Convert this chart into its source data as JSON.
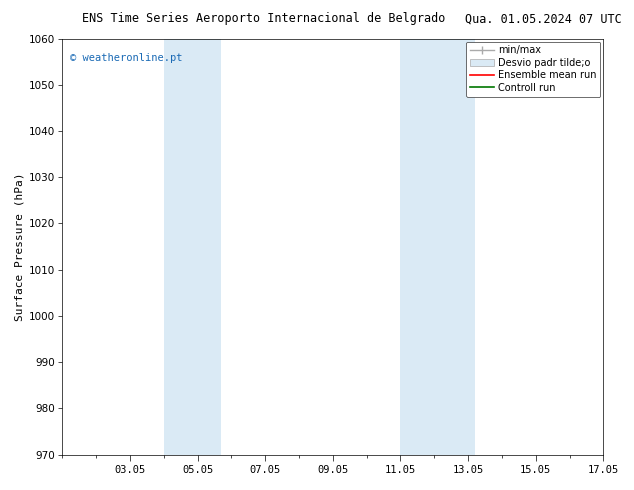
{
  "title_left": "ENS Time Series Aeroporto Internacional de Belgrado",
  "title_right": "Qua. 01.05.2024 07 UTC",
  "ylabel": "Surface Pressure (hPa)",
  "ylim": [
    970,
    1060
  ],
  "yticks": [
    970,
    980,
    990,
    1000,
    1010,
    1020,
    1030,
    1040,
    1050,
    1060
  ],
  "xlim": [
    1.0,
    17.0
  ],
  "xtick_labels": [
    "03.05",
    "05.05",
    "07.05",
    "09.05",
    "11.05",
    "13.05",
    "15.05",
    "17.05"
  ],
  "xtick_positions": [
    3,
    5,
    7,
    9,
    11,
    13,
    15,
    17
  ],
  "shaded_regions": [
    {
      "x_start": 4.0,
      "x_end": 5.7,
      "color": "#daeaf5"
    },
    {
      "x_start": 11.0,
      "x_end": 11.7,
      "color": "#daeaf5"
    },
    {
      "x_start": 11.7,
      "x_end": 13.2,
      "color": "#daeaf5"
    }
  ],
  "watermark_text": "© weatheronline.pt",
  "watermark_color": "#1a6ab5",
  "background_color": "#ffffff",
  "legend_entries": [
    {
      "label": "min/max",
      "type": "line",
      "color": "#aaaaaa",
      "lw": 1.0
    },
    {
      "label": "Desvio padr tilde;o",
      "type": "patch",
      "color": "#daeaf5",
      "edgecolor": "#aaaaaa"
    },
    {
      "label": "Ensemble mean run",
      "type": "line",
      "color": "#ff0000",
      "lw": 1.2
    },
    {
      "label": "Controll run",
      "type": "line",
      "color": "#007700",
      "lw": 1.2
    }
  ],
  "font_family": "DejaVu Sans Mono",
  "title_fontsize": 8.5,
  "ylabel_fontsize": 8,
  "tick_fontsize": 7.5,
  "legend_fontsize": 7,
  "watermark_fontsize": 7.5,
  "figsize": [
    6.34,
    4.9
  ],
  "dpi": 100
}
